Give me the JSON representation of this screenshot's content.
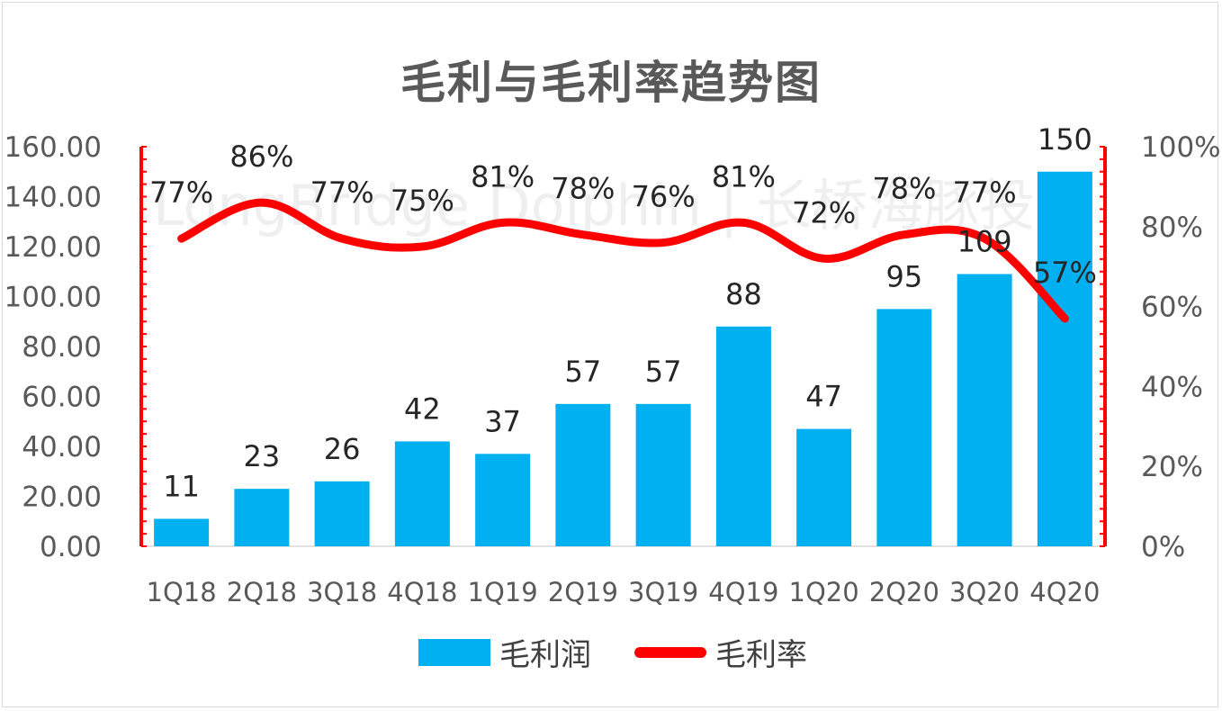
{
  "chart_data": {
    "type": "bar",
    "title": "毛利与毛利率趋势图",
    "categories": [
      "1Q18",
      "2Q18",
      "3Q18",
      "4Q18",
      "1Q19",
      "2Q19",
      "3Q19",
      "4Q19",
      "1Q20",
      "2Q20",
      "3Q20",
      "4Q20"
    ],
    "series": [
      {
        "name": "毛利润",
        "type": "bar",
        "axis": "left",
        "color": "#00b0f0",
        "values": [
          11,
          23,
          26,
          42,
          37,
          57,
          57,
          88,
          47,
          95,
          109,
          150
        ],
        "labels": [
          "11",
          "23",
          "26",
          "42",
          "37",
          "57",
          "57",
          "88",
          "47",
          "95",
          "109",
          "150"
        ]
      },
      {
        "name": "毛利率",
        "type": "line",
        "axis": "right",
        "color": "#ff0000",
        "values": [
          77,
          86,
          77,
          75,
          81,
          78,
          76,
          81,
          72,
          78,
          77,
          57
        ],
        "labels": [
          "77%",
          "86%",
          "77%",
          "75%",
          "81%",
          "78%",
          "76%",
          "81%",
          "72%",
          "78%",
          "77%",
          "57%"
        ]
      }
    ],
    "y_left": {
      "ylim": [
        0,
        160
      ],
      "ticks": [
        "0.00",
        "20.00",
        "40.00",
        "60.00",
        "80.00",
        "100.00",
        "120.00",
        "140.00",
        "160.00"
      ]
    },
    "y_right": {
      "ylim": [
        0,
        100
      ],
      "ticks": [
        "0%",
        "20%",
        "40%",
        "60%",
        "80%",
        "100%"
      ]
    },
    "grid": false,
    "legend_position": "bottom",
    "axis_color": "#ff0000"
  },
  "watermark": "LongBridge Dolphin | 长桥海豚投研"
}
